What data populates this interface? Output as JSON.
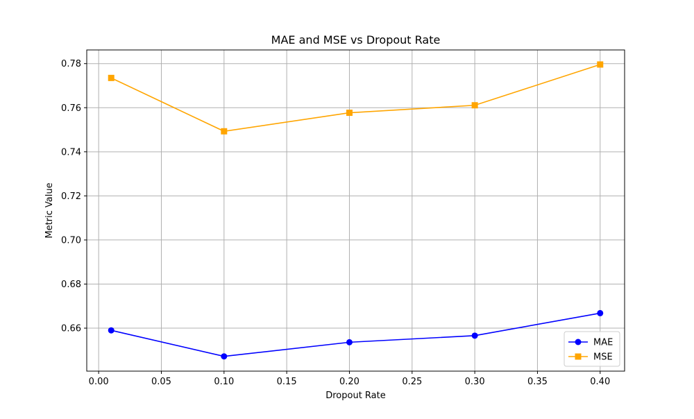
{
  "chart_data": {
    "type": "line",
    "title": "MAE and MSE vs Dropout Rate",
    "xlabel": "Dropout Rate",
    "ylabel": "Metric Value",
    "x": [
      0.01,
      0.1,
      0.2,
      0.3,
      0.4
    ],
    "series": [
      {
        "name": "MAE",
        "values": [
          0.659,
          0.6472,
          0.6536,
          0.6566,
          0.6668
        ],
        "color": "#0000ff",
        "marker": "circle"
      },
      {
        "name": "MSE",
        "values": [
          0.7735,
          0.7493,
          0.7577,
          0.7611,
          0.7796
        ],
        "color": "#ffa500",
        "marker": "square"
      }
    ],
    "xlim": [
      -0.0095,
      0.4195
    ],
    "ylim": [
      0.6405,
      0.7862
    ],
    "xticks": [
      "0.00",
      "0.05",
      "0.10",
      "0.15",
      "0.20",
      "0.25",
      "0.30",
      "0.35",
      "0.40"
    ],
    "yticks": [
      "0.66",
      "0.68",
      "0.70",
      "0.72",
      "0.74",
      "0.76",
      "0.78"
    ],
    "grid": true,
    "legend_position": "lower-right"
  }
}
